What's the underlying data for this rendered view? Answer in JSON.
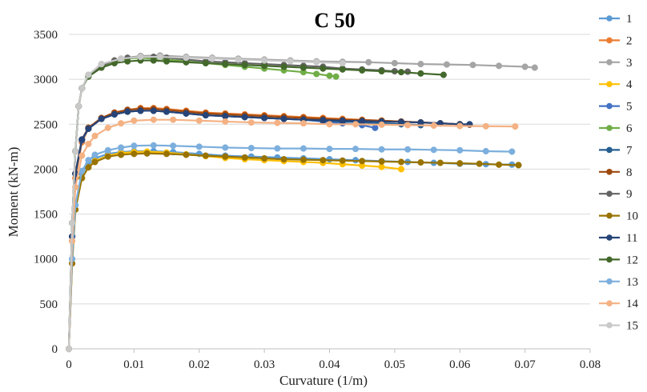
{
  "chart_data": {
    "type": "scatter",
    "title": "C 50",
    "xlabel": "Curvature (1/m)",
    "ylabel": "Moment (kN-m)",
    "xlim": [
      0,
      0.08
    ],
    "ylim": [
      0,
      3500
    ],
    "x_ticks": [
      "0",
      "0.01",
      "0.02",
      "0.03",
      "0.04",
      "0.05",
      "0.06",
      "0.07",
      "0.08"
    ],
    "y_ticks": [
      "0",
      "500",
      "1000",
      "1500",
      "2000",
      "2500",
      "3000",
      "3500"
    ],
    "grid": "horizontal",
    "legend": "right",
    "series": [
      {
        "name": "1",
        "color": "#5b9bd5",
        "x": [
          0,
          0.0005,
          0.001,
          0.002,
          0.003,
          0.004,
          0.006,
          0.008,
          0.01,
          0.013,
          0.016,
          0.02,
          0.024,
          0.028,
          0.032,
          0.036,
          0.04,
          0.044,
          0.048,
          0.052,
          0.056,
          0.06,
          0.064,
          0.068,
          0.069
        ],
        "y": [
          0,
          1000,
          1600,
          1950,
          2060,
          2120,
          2170,
          2190,
          2200,
          2200,
          2190,
          2170,
          2150,
          2140,
          2130,
          2120,
          2110,
          2100,
          2090,
          2080,
          2070,
          2060,
          2055,
          2050,
          2045
        ]
      },
      {
        "name": "2",
        "color": "#ed7d31",
        "x": [
          0,
          0.0005,
          0.001,
          0.002,
          0.003,
          0.005,
          0.007,
          0.009,
          0.011,
          0.013,
          0.015,
          0.018,
          0.021,
          0.024,
          0.027,
          0.03,
          0.033,
          0.036,
          0.039,
          0.042,
          0.045,
          0.048,
          0.051,
          0.054,
          0.057,
          0.06
        ],
        "y": [
          0,
          1200,
          1900,
          2300,
          2450,
          2560,
          2620,
          2660,
          2680,
          2680,
          2670,
          2650,
          2630,
          2620,
          2610,
          2600,
          2590,
          2580,
          2570,
          2560,
          2550,
          2540,
          2530,
          2520,
          2510,
          2500
        ]
      },
      {
        "name": "3",
        "color": "#a5a5a5",
        "x": [
          0,
          0.0005,
          0.001,
          0.0015,
          0.002,
          0.003,
          0.005,
          0.008,
          0.011,
          0.014,
          0.018,
          0.022,
          0.026,
          0.03,
          0.034,
          0.038,
          0.042,
          0.046,
          0.05,
          0.054,
          0.058,
          0.062,
          0.066,
          0.07,
          0.0715
        ],
        "y": [
          0,
          1400,
          2200,
          2700,
          2900,
          3050,
          3170,
          3230,
          3260,
          3265,
          3250,
          3240,
          3230,
          3220,
          3210,
          3200,
          3195,
          3190,
          3180,
          3170,
          3165,
          3160,
          3150,
          3140,
          3130
        ]
      },
      {
        "name": "4",
        "color": "#ffc000",
        "x": [
          0,
          0.0005,
          0.001,
          0.002,
          0.003,
          0.004,
          0.006,
          0.008,
          0.01,
          0.012,
          0.015,
          0.018,
          0.021,
          0.024,
          0.027,
          0.03,
          0.033,
          0.036,
          0.039,
          0.042,
          0.045,
          0.048,
          0.051
        ],
        "y": [
          0,
          950,
          1550,
          1900,
          2020,
          2090,
          2150,
          2180,
          2190,
          2195,
          2185,
          2165,
          2145,
          2125,
          2110,
          2100,
          2090,
          2080,
          2070,
          2055,
          2040,
          2025,
          2000
        ]
      },
      {
        "name": "5",
        "color": "#4472c4",
        "x": [
          0,
          0.0005,
          0.001,
          0.002,
          0.003,
          0.005,
          0.007,
          0.009,
          0.011,
          0.013,
          0.015,
          0.018,
          0.021,
          0.024,
          0.027,
          0.03,
          0.033,
          0.036,
          0.039,
          0.042,
          0.045,
          0.047
        ],
        "y": [
          0,
          1250,
          1950,
          2320,
          2450,
          2560,
          2610,
          2640,
          2650,
          2650,
          2640,
          2620,
          2600,
          2590,
          2580,
          2570,
          2560,
          2550,
          2530,
          2510,
          2490,
          2460
        ]
      },
      {
        "name": "6",
        "color": "#70ad47",
        "x": [
          0,
          0.0005,
          0.001,
          0.0015,
          0.002,
          0.003,
          0.005,
          0.007,
          0.009,
          0.011,
          0.013,
          0.015,
          0.018,
          0.021,
          0.024,
          0.027,
          0.03,
          0.033,
          0.036,
          0.038,
          0.04,
          0.041
        ],
        "y": [
          0,
          1400,
          2200,
          2700,
          2900,
          3040,
          3150,
          3200,
          3230,
          3240,
          3230,
          3220,
          3200,
          3180,
          3160,
          3140,
          3120,
          3100,
          3080,
          3060,
          3040,
          3030
        ]
      },
      {
        "name": "7",
        "color": "#255e91",
        "x": [
          0,
          0.0005,
          0.001,
          0.002,
          0.003,
          0.005,
          0.007,
          0.009,
          0.011,
          0.013,
          0.015,
          0.018,
          0.021,
          0.024,
          0.027,
          0.03,
          0.033,
          0.036,
          0.039,
          0.042,
          0.045,
          0.048,
          0.051,
          0.054
        ],
        "y": [
          0,
          1250,
          1950,
          2330,
          2460,
          2560,
          2610,
          2640,
          2650,
          2650,
          2640,
          2620,
          2600,
          2590,
          2580,
          2570,
          2560,
          2550,
          2540,
          2530,
          2520,
          2510,
          2500,
          2490
        ]
      },
      {
        "name": "8",
        "color": "#9e480e",
        "x": [
          0,
          0.0005,
          0.001,
          0.002,
          0.003,
          0.005,
          0.007,
          0.009,
          0.011,
          0.013,
          0.015,
          0.018,
          0.021,
          0.024,
          0.027,
          0.03,
          0.033,
          0.036,
          0.039,
          0.042,
          0.045,
          0.048,
          0.051,
          0.054,
          0.057,
          0.06,
          0.0615
        ],
        "y": [
          0,
          1250,
          1950,
          2330,
          2460,
          2570,
          2630,
          2660,
          2670,
          2670,
          2660,
          2640,
          2620,
          2610,
          2600,
          2590,
          2580,
          2570,
          2560,
          2550,
          2545,
          2540,
          2530,
          2520,
          2510,
          2500,
          2495
        ]
      },
      {
        "name": "9",
        "color": "#636363",
        "x": [
          0,
          0.0005,
          0.001,
          0.0015,
          0.002,
          0.003,
          0.005,
          0.007,
          0.009,
          0.011,
          0.013,
          0.015,
          0.018,
          0.021,
          0.024,
          0.027,
          0.03,
          0.033,
          0.036,
          0.039,
          0.042,
          0.045,
          0.048,
          0.05,
          0.052
        ],
        "y": [
          0,
          1400,
          2200,
          2700,
          2900,
          3040,
          3150,
          3210,
          3240,
          3250,
          3250,
          3240,
          3220,
          3200,
          3190,
          3180,
          3170,
          3160,
          3150,
          3140,
          3120,
          3110,
          3100,
          3090,
          3085
        ]
      },
      {
        "name": "10",
        "color": "#997300",
        "x": [
          0,
          0.0005,
          0.001,
          0.002,
          0.003,
          0.004,
          0.006,
          0.008,
          0.01,
          0.012,
          0.015,
          0.018,
          0.021,
          0.024,
          0.027,
          0.03,
          0.033,
          0.036,
          0.039,
          0.042,
          0.045,
          0.048,
          0.051,
          0.054,
          0.057,
          0.06,
          0.063,
          0.066,
          0.069
        ],
        "y": [
          0,
          950,
          1550,
          1900,
          2020,
          2080,
          2140,
          2160,
          2170,
          2175,
          2170,
          2160,
          2150,
          2140,
          2130,
          2120,
          2110,
          2105,
          2100,
          2095,
          2090,
          2085,
          2080,
          2075,
          2070,
          2065,
          2060,
          2050,
          2045
        ]
      },
      {
        "name": "11",
        "color": "#264478",
        "x": [
          0,
          0.0005,
          0.001,
          0.002,
          0.003,
          0.005,
          0.007,
          0.009,
          0.011,
          0.013,
          0.015,
          0.018,
          0.021,
          0.024,
          0.027,
          0.03,
          0.033,
          0.036,
          0.039,
          0.042,
          0.045,
          0.048,
          0.051,
          0.054,
          0.057,
          0.06,
          0.0615
        ],
        "y": [
          0,
          1250,
          1950,
          2330,
          2450,
          2560,
          2610,
          2640,
          2650,
          2650,
          2640,
          2620,
          2600,
          2590,
          2580,
          2570,
          2560,
          2550,
          2545,
          2540,
          2535,
          2530,
          2525,
          2520,
          2510,
          2500,
          2500
        ]
      },
      {
        "name": "12",
        "color": "#43682b",
        "x": [
          0,
          0.0005,
          0.001,
          0.0015,
          0.002,
          0.003,
          0.005,
          0.007,
          0.009,
          0.011,
          0.013,
          0.015,
          0.018,
          0.021,
          0.024,
          0.027,
          0.03,
          0.033,
          0.036,
          0.039,
          0.042,
          0.045,
          0.048,
          0.051,
          0.054,
          0.0575
        ],
        "y": [
          0,
          1400,
          2200,
          2700,
          2900,
          3030,
          3130,
          3180,
          3200,
          3210,
          3210,
          3200,
          3190,
          3180,
          3170,
          3160,
          3150,
          3140,
          3130,
          3120,
          3110,
          3100,
          3090,
          3080,
          3065,
          3050
        ]
      },
      {
        "name": "13",
        "color": "#7cafdd",
        "x": [
          0,
          0.0005,
          0.001,
          0.002,
          0.003,
          0.004,
          0.006,
          0.008,
          0.01,
          0.013,
          0.016,
          0.02,
          0.024,
          0.028,
          0.032,
          0.036,
          0.04,
          0.044,
          0.048,
          0.052,
          0.056,
          0.06,
          0.064,
          0.068
        ],
        "y": [
          0,
          1000,
          1600,
          1980,
          2100,
          2160,
          2210,
          2240,
          2260,
          2265,
          2260,
          2250,
          2240,
          2235,
          2230,
          2230,
          2225,
          2225,
          2220,
          2220,
          2215,
          2210,
          2200,
          2195
        ]
      },
      {
        "name": "14",
        "color": "#f4b183",
        "x": [
          0,
          0.0005,
          0.001,
          0.002,
          0.003,
          0.004,
          0.006,
          0.008,
          0.01,
          0.013,
          0.016,
          0.02,
          0.024,
          0.028,
          0.032,
          0.036,
          0.04,
          0.044,
          0.048,
          0.052,
          0.056,
          0.06,
          0.064,
          0.0685
        ],
        "y": [
          0,
          1200,
          1800,
          2150,
          2280,
          2370,
          2460,
          2510,
          2540,
          2550,
          2550,
          2540,
          2530,
          2520,
          2515,
          2510,
          2500,
          2500,
          2495,
          2490,
          2485,
          2480,
          2478,
          2475
        ]
      },
      {
        "name": "15",
        "color": "#c9c9c9",
        "x": [
          0,
          0.0005,
          0.001,
          0.0015,
          0.002,
          0.003,
          0.005,
          0.008,
          0.011,
          0.014,
          0.018,
          0.022,
          0.026,
          0.03,
          0.034,
          0.038,
          0.042
        ],
        "y": [
          0,
          1400,
          2200,
          2700,
          2900,
          3050,
          3170,
          3230,
          3250,
          3250,
          3240,
          3230,
          3220,
          3210,
          3200,
          3190,
          3180
        ]
      }
    ]
  }
}
